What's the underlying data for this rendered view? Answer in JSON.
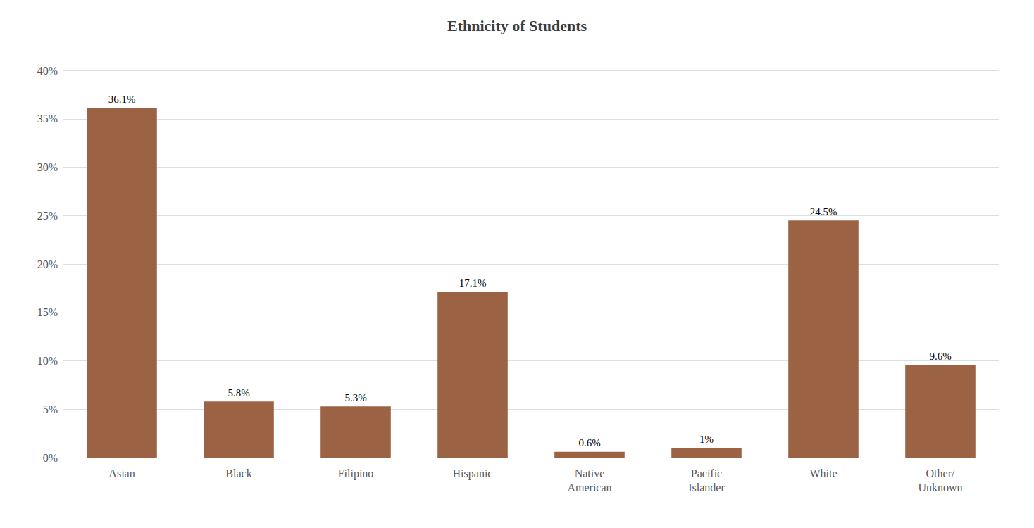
{
  "chart_data": {
    "type": "bar",
    "title": "Ethnicity of Students",
    "categories": [
      "Asian",
      "Black",
      "Filipino",
      "Hispanic",
      "Native\nAmerican",
      "Pacific\nIslander",
      "White",
      "Other/\nUnknown"
    ],
    "values": [
      36.1,
      5.8,
      5.3,
      17.1,
      0.6,
      1.0,
      24.5,
      9.6
    ],
    "value_labels": [
      "36.1%",
      "5.8%",
      "5.3%",
      "17.1%",
      "0.6%",
      "1%",
      "24.5%",
      "9.6%"
    ],
    "data_labels": true,
    "color": "#9B6343",
    "ylim": [
      0,
      40
    ],
    "yticks": [
      {
        "value": 0,
        "label": "0%"
      },
      {
        "value": 5,
        "label": "5%"
      },
      {
        "value": 10,
        "label": "10%"
      },
      {
        "value": 15,
        "label": "15%"
      },
      {
        "value": 20,
        "label": "20%"
      },
      {
        "value": 25,
        "label": "25%"
      },
      {
        "value": 30,
        "label": "30%"
      },
      {
        "value": 35,
        "label": "35%"
      },
      {
        "value": 40,
        "label": "40%"
      }
    ],
    "grid": true
  }
}
